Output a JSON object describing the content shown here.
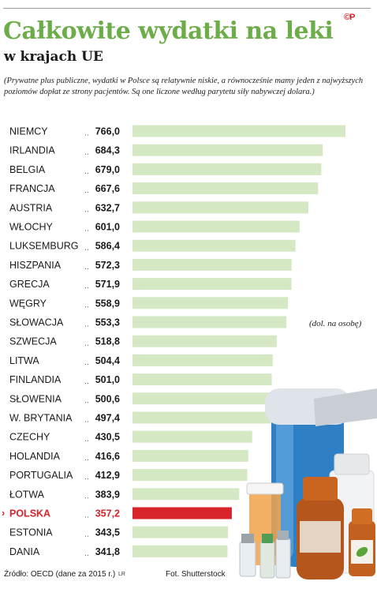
{
  "header": {
    "brand": "©P",
    "title": "Całkowite wydatki na leki",
    "subtitle": "w krajach UE",
    "description": "(Prywatne plus publiczne, wydatki w Polsce są relatywnie niskie, a równocześnie mamy jeden z najwyższych poziomów dopłat ze strony pacjentów. Są one liczone według parytetu siły nabywczej dolara.)"
  },
  "unit_note": "(dol. na osobę)",
  "footer": {
    "source": "Źródło: OECD (dane za 2015 r.)",
    "author": "LR",
    "photo": "Fot. Shutterstock"
  },
  "colors": {
    "title": "#6cad4a",
    "bar": "#d5e8c4",
    "highlight": "#d8232a"
  },
  "chart_data": {
    "type": "bar",
    "orientation": "horizontal",
    "categories": [
      "NIEMCY",
      "IRLANDIA",
      "BELGIA",
      "FRANCJA",
      "AUSTRIA",
      "WŁOCHY",
      "LUKSEMBURG",
      "HISZPANIA",
      "GRECJA",
      "WĘGRY",
      "SŁOWACJA",
      "SZWECJA",
      "LITWA",
      "FINLANDIA",
      "SŁOWENIA",
      "W. BRYTANIA",
      "CZECHY",
      "HOLANDIA",
      "PORTUGALIA",
      "ŁOTWA",
      "POLSKA",
      "ESTONIA",
      "DANIA"
    ],
    "values": [
      766.0,
      684.3,
      679.0,
      667.6,
      632.7,
      601.0,
      586.4,
      572.3,
      571.9,
      558.9,
      553.3,
      518.8,
      504.4,
      501.0,
      500.6,
      497.4,
      430.5,
      416.6,
      412.9,
      383.9,
      357.2,
      343.5,
      341.8
    ],
    "value_labels": [
      "766,0",
      "684,3",
      "679,0",
      "667,6",
      "632,7",
      "601,0",
      "586,4",
      "572,3",
      "571,9",
      "558,9",
      "553,3",
      "518,8",
      "504,4",
      "501,0",
      "500,6",
      "497,4",
      "430,5",
      "416,6",
      "412,9",
      "383,9",
      "357,2",
      "343,5",
      "341,8"
    ],
    "highlight": "POLSKA",
    "xlim": [
      0,
      766.0
    ],
    "grid": false
  }
}
